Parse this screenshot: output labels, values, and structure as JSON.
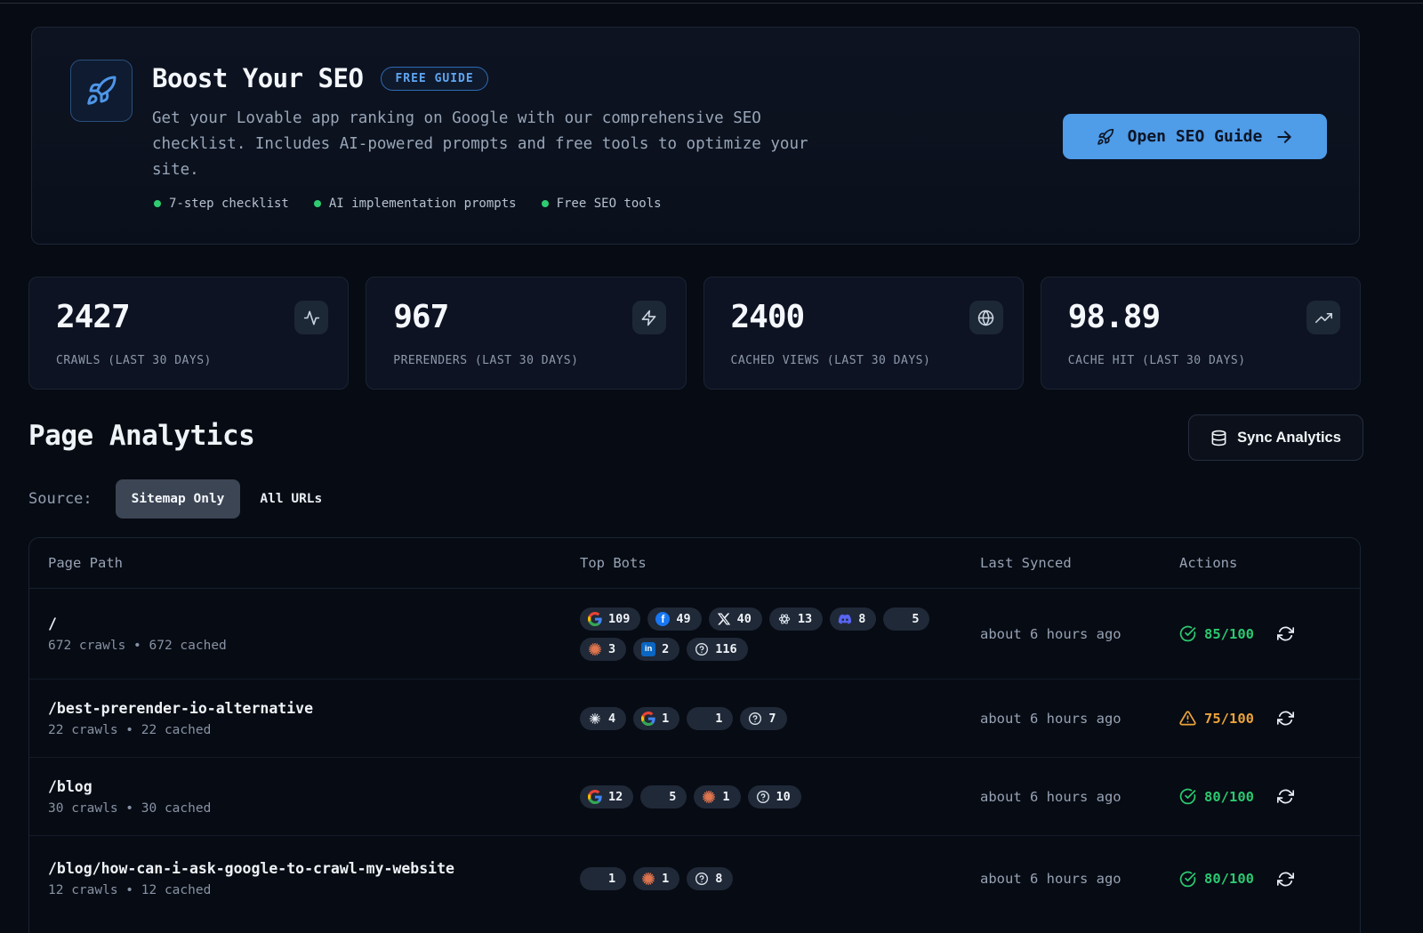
{
  "banner": {
    "title": "Boost Your SEO",
    "badge": "FREE GUIDE",
    "description": "Get your Lovable app ranking on Google with our comprehensive SEO checklist. Includes AI-powered prompts and free tools to optimize your site.",
    "features": [
      "7-step checklist",
      "AI implementation prompts",
      "Free SEO tools"
    ],
    "cta_label": "Open SEO Guide"
  },
  "stats": [
    {
      "value": "2427",
      "label": "CRAWLS (LAST 30 DAYS)",
      "icon": "activity"
    },
    {
      "value": "967",
      "label": "PRERENDERS (LAST 30 DAYS)",
      "icon": "zap"
    },
    {
      "value": "2400",
      "label": "CACHED VIEWS (LAST 30 DAYS)",
      "icon": "globe"
    },
    {
      "value": "98.89",
      "label": "CACHE HIT (LAST 30 DAYS)",
      "icon": "trending-up"
    }
  ],
  "analytics": {
    "title": "Page Analytics",
    "sync_label": "Sync Analytics",
    "source_label": "Source:",
    "source_selected": "Sitemap Only",
    "source_other": "All URLs"
  },
  "table": {
    "headers": [
      "Page Path",
      "Top Bots",
      "Last Synced",
      "Actions"
    ],
    "rows": [
      {
        "path": "/",
        "meta": "672 crawls • 672 cached",
        "bots": [
          {
            "bot": "google",
            "count": "109"
          },
          {
            "bot": "facebook",
            "count": "49"
          },
          {
            "bot": "x",
            "count": "40"
          },
          {
            "bot": "openai",
            "count": "13"
          },
          {
            "bot": "discord",
            "count": "8"
          },
          {
            "bot": "bing",
            "count": "5"
          },
          {
            "bot": "claude",
            "count": "3"
          },
          {
            "bot": "linkedin",
            "count": "2"
          },
          {
            "bot": "unknown",
            "count": "116"
          }
        ],
        "synced": "about 6 hours ago",
        "score": "85/100",
        "score_status": "good"
      },
      {
        "path": "/best-prerender-io-alternative",
        "meta": "22 crawls • 22 cached",
        "bots": [
          {
            "bot": "perplexity",
            "count": "4"
          },
          {
            "bot": "google",
            "count": "1"
          },
          {
            "bot": "bing",
            "count": "1"
          },
          {
            "bot": "unknown",
            "count": "7"
          }
        ],
        "synced": "about 6 hours ago",
        "score": "75/100",
        "score_status": "warn"
      },
      {
        "path": "/blog",
        "meta": "30 crawls • 30 cached",
        "bots": [
          {
            "bot": "google",
            "count": "12"
          },
          {
            "bot": "bing",
            "count": "5"
          },
          {
            "bot": "claude",
            "count": "1"
          },
          {
            "bot": "unknown",
            "count": "10"
          }
        ],
        "synced": "about 6 hours ago",
        "score": "80/100",
        "score_status": "good"
      },
      {
        "path": "/blog/how-can-i-ask-google-to-crawl-my-website",
        "meta": "12 crawls • 12 cached",
        "bots": [
          {
            "bot": "bing",
            "count": "1"
          },
          {
            "bot": "claude",
            "count": "1"
          },
          {
            "bot": "unknown",
            "count": "8"
          }
        ],
        "synced": "about 6 hours ago",
        "score": "80/100",
        "score_status": "good"
      }
    ]
  },
  "colors": {
    "accent_blue": "#4f9ce8",
    "score_good": "#2bc971",
    "score_warn": "#eca33b",
    "feature_dot": "#2ecc71"
  }
}
